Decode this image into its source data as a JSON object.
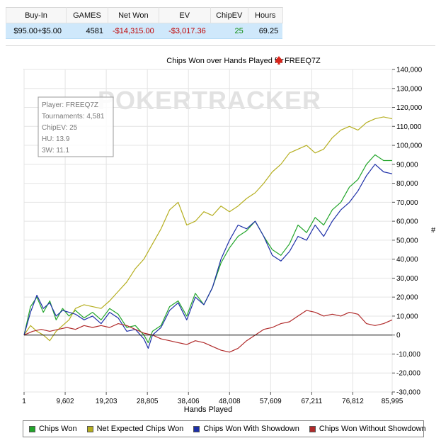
{
  "stats_table": {
    "headers": [
      "Buy-In",
      "GAMES",
      "Net Won",
      "EV",
      "ChipEV",
      "Hours"
    ],
    "row": [
      "$95.00+$5.00",
      "4581",
      "-$14,315.00",
      "-$3,017.36",
      "25",
      "69.25"
    ]
  },
  "chart_data": {
    "type": "line",
    "title": "Chips Won over Hands Played for",
    "player_name": "FREEQ7Z",
    "xlabel": "Hands Played",
    "ylabel": "#",
    "xlim": [
      1,
      85995
    ],
    "ylim": [
      -30000,
      140000
    ],
    "x_ticks": [
      1,
      9602,
      19203,
      28805,
      38406,
      48008,
      57609,
      67211,
      76812,
      85995
    ],
    "x_tick_labels": [
      "1",
      "9,602",
      "19,203",
      "28,805",
      "38,406",
      "48,008",
      "57,609",
      "67,211",
      "76,812",
      "85,995"
    ],
    "y_ticks": [
      -30000,
      -20000,
      -10000,
      0,
      10000,
      20000,
      30000,
      40000,
      50000,
      60000,
      70000,
      80000,
      90000,
      100000,
      110000,
      120000,
      130000,
      140000
    ],
    "y_tick_labels": [
      "-30,000",
      "-20,000",
      "-10,000",
      "0",
      "10,000",
      "20,000",
      "30,000",
      "40,000",
      "50,000",
      "60,000",
      "70,000",
      "80,000",
      "90,000",
      "100,000",
      "110,000",
      "120,000",
      "130,000",
      "140,000"
    ],
    "y_axis_side": "right",
    "grid": true,
    "legend_placement": "bottom",
    "watermark": "POKERTRACKER",
    "info_box": [
      "Player: FREEQ7Z",
      "Tournaments: 4,581",
      "ChipEV: 25",
      "HU: 13.9",
      "3W: 11.1"
    ],
    "series": [
      {
        "name": "Chips Won",
        "color": "#22a52a",
        "x": [
          0,
          1500,
          3000,
          4500,
          6000,
          7500,
          9000,
          10500,
          12000,
          14000,
          16000,
          18000,
          20000,
          22000,
          24000,
          26000,
          28000,
          29000,
          30000,
          32000,
          34000,
          36000,
          38000,
          40000,
          42000,
          44000,
          46000,
          48000,
          50000,
          52000,
          54000,
          56000,
          58000,
          60000,
          62000,
          64000,
          66000,
          68000,
          70000,
          72000,
          74000,
          76000,
          78000,
          80000,
          82000,
          84000,
          85995
        ],
        "y": [
          0,
          15000,
          20000,
          12000,
          18000,
          8000,
          14000,
          10000,
          13000,
          9000,
          12000,
          8000,
          14000,
          11000,
          4000,
          5000,
          0,
          -4000,
          2000,
          5000,
          15000,
          18000,
          10000,
          22000,
          16000,
          25000,
          38000,
          46000,
          52000,
          55000,
          60000,
          52000,
          45000,
          42000,
          48000,
          58000,
          54000,
          62000,
          58000,
          66000,
          70000,
          78000,
          82000,
          90000,
          95000,
          92000,
          92000
        ]
      },
      {
        "name": "Net Expected Chips Won",
        "color": "#b5ae1f",
        "x": [
          0,
          1500,
          3000,
          4500,
          6000,
          7500,
          9000,
          10500,
          12000,
          14000,
          16000,
          18000,
          20000,
          22000,
          24000,
          26000,
          28000,
          30000,
          32000,
          34000,
          36000,
          38000,
          40000,
          42000,
          44000,
          46000,
          48000,
          50000,
          52000,
          54000,
          56000,
          58000,
          60000,
          62000,
          64000,
          66000,
          68000,
          70000,
          72000,
          74000,
          76000,
          78000,
          80000,
          82000,
          84000,
          85995
        ],
        "y": [
          0,
          5000,
          2000,
          0,
          -3000,
          2000,
          5000,
          8000,
          14000,
          16000,
          15000,
          14000,
          18000,
          23000,
          28000,
          35000,
          40000,
          48000,
          56000,
          66000,
          70000,
          58000,
          60000,
          65000,
          63000,
          68000,
          65000,
          68000,
          72000,
          75000,
          80000,
          86000,
          90000,
          96000,
          98000,
          100000,
          96000,
          98000,
          104000,
          108000,
          110000,
          108000,
          112000,
          114000,
          115000,
          114000
        ]
      },
      {
        "name": "Chips Won With Showdown",
        "color": "#1d2fa8",
        "x": [
          0,
          1500,
          3000,
          4500,
          6000,
          7500,
          9000,
          10500,
          12000,
          14000,
          16000,
          18000,
          20000,
          22000,
          24000,
          26000,
          28000,
          29000,
          30000,
          32000,
          34000,
          36000,
          38000,
          40000,
          42000,
          44000,
          46000,
          48000,
          50000,
          52000,
          54000,
          56000,
          58000,
          60000,
          62000,
          64000,
          66000,
          68000,
          70000,
          72000,
          74000,
          76000,
          78000,
          80000,
          82000,
          84000,
          85995
        ],
        "y": [
          0,
          12000,
          21000,
          14000,
          17000,
          10000,
          13000,
          12000,
          11000,
          8000,
          10000,
          6000,
          12000,
          9000,
          2000,
          3000,
          -2000,
          -7000,
          0,
          4000,
          13000,
          17000,
          8000,
          20000,
          16000,
          25000,
          40000,
          50000,
          58000,
          56000,
          60000,
          52000,
          42000,
          39000,
          44000,
          52000,
          50000,
          58000,
          52000,
          60000,
          66000,
          70000,
          76000,
          84000,
          90000,
          86000,
          85000
        ]
      },
      {
        "name": "Chips Won Without Showdown",
        "color": "#b02a2a",
        "x": [
          0,
          2000,
          4000,
          6000,
          8000,
          10000,
          12000,
          14000,
          16000,
          18000,
          20000,
          22000,
          24000,
          26000,
          28000,
          30000,
          32000,
          34000,
          36000,
          38000,
          40000,
          42000,
          44000,
          46000,
          48000,
          50000,
          52000,
          54000,
          56000,
          58000,
          60000,
          62000,
          64000,
          66000,
          68000,
          70000,
          72000,
          74000,
          76000,
          78000,
          80000,
          82000,
          84000,
          85995
        ],
        "y": [
          0,
          2000,
          3000,
          2000,
          3000,
          4000,
          3000,
          5000,
          4000,
          5000,
          4000,
          6000,
          5000,
          3000,
          1000,
          0,
          -2000,
          -3000,
          -4000,
          -5000,
          -3000,
          -4000,
          -6000,
          -8000,
          -9000,
          -7000,
          -3000,
          0,
          3000,
          4000,
          6000,
          7000,
          10000,
          13000,
          12000,
          10000,
          11000,
          10000,
          12000,
          11000,
          6000,
          5000,
          6000,
          8000
        ]
      }
    ]
  },
  "legend": {
    "items": [
      {
        "label": "Chips Won",
        "color": "#22a52a"
      },
      {
        "label": "Net Expected Chips Won",
        "color": "#b5ae1f"
      },
      {
        "label": "Chips Won With Showdown",
        "color": "#1d2fa8"
      },
      {
        "label": "Chips Won Without Showdown",
        "color": "#b02a2a"
      }
    ]
  },
  "icons": {
    "title_icon": "spade-icon",
    "title_icon_color": "#d9261c"
  }
}
